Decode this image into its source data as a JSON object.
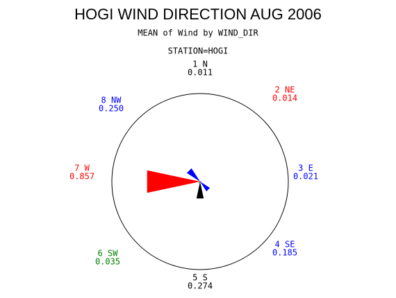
{
  "chart_data": {
    "type": "windrose",
    "title": "HOGI WIND DIRECTION AUG 2006",
    "subtitle": "MEAN of Wind by WIND_DIR",
    "station": "STATION=HOGI",
    "categories": [
      "1 N",
      "2 NE",
      "3 E",
      "4 SE",
      "5 S",
      "6 SW",
      "7 W",
      "8 NW"
    ],
    "values": [
      0.011,
      0.014,
      0.021,
      0.185,
      0.274,
      0.035,
      0.857,
      0.25
    ],
    "value_labels": [
      "0.011",
      "0.014",
      "0.021",
      "0.185",
      "0.274",
      "0.035",
      "0.857",
      "0.250"
    ],
    "colors": [
      "#000000",
      "#ff0000",
      "#0000ff",
      "#0000ff",
      "#000000",
      "#008000",
      "#ff0000",
      "#0000ff"
    ]
  }
}
